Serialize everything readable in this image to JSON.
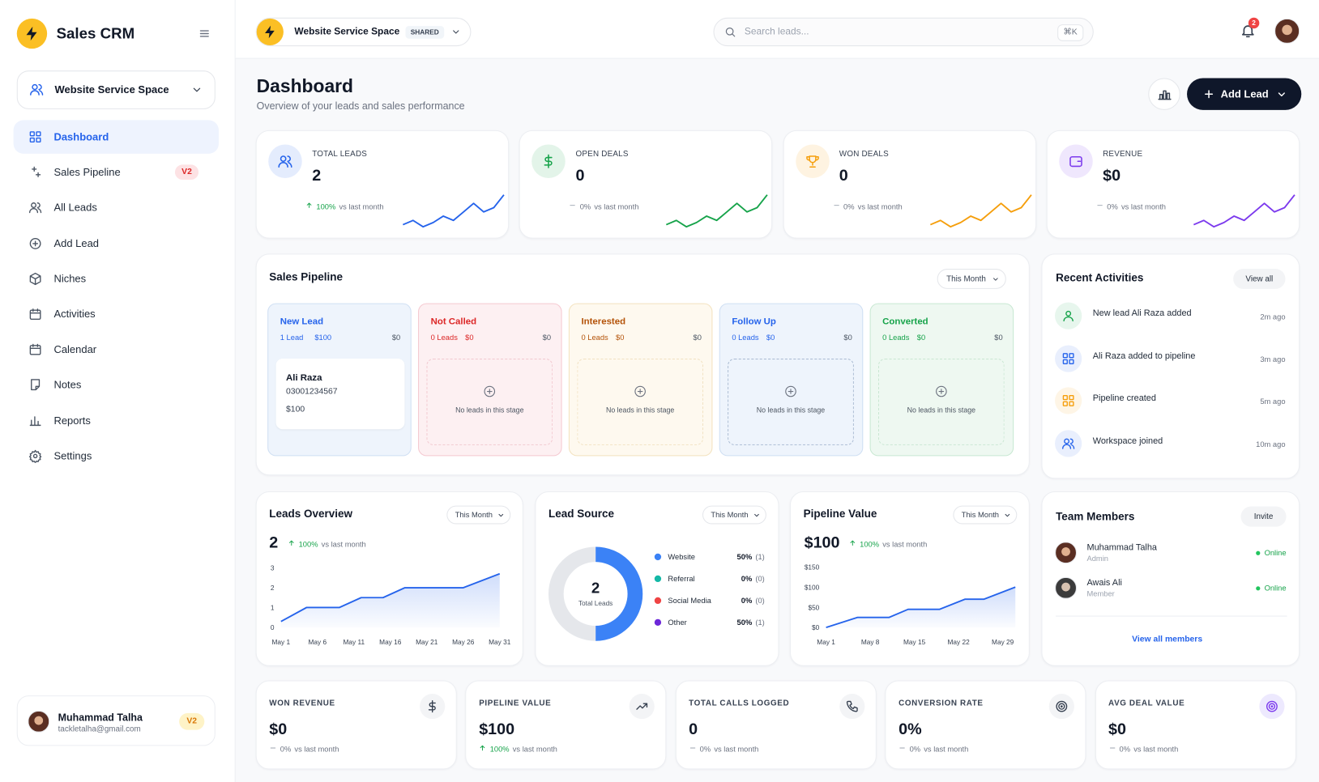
{
  "sidebar": {
    "brand": "Sales CRM",
    "workspace": "Website Service Space",
    "nav": [
      {
        "label": "Dashboard",
        "active": true
      },
      {
        "label": "Sales Pipeline",
        "badge": "V2"
      },
      {
        "label": "All Leads"
      },
      {
        "label": "Add Lead"
      },
      {
        "label": "Niches"
      },
      {
        "label": "Activities"
      },
      {
        "label": "Calendar"
      },
      {
        "label": "Notes"
      },
      {
        "label": "Reports"
      },
      {
        "label": "Settings"
      }
    ],
    "user": {
      "name": "Muhammad Talha",
      "email": "tackletalha@gmail.com",
      "badge": "V2"
    }
  },
  "topbar": {
    "workspace": "Website Service Space",
    "tag": "SHARED",
    "search": "Search leads...",
    "shortcut": "⌘K",
    "notifications": "2"
  },
  "header": {
    "title": "Dashboard",
    "subtitle": "Overview of your leads and sales performance",
    "add_button": "Add Lead"
  },
  "stats": [
    {
      "label": "TOTAL LEADS",
      "value": "2",
      "change": "100%",
      "change_text": "vs last month",
      "direction": "up",
      "color": "#2563eb",
      "trend": [
        2,
        3,
        1.5,
        2.5,
        4,
        3,
        5,
        7,
        5,
        6,
        9
      ]
    },
    {
      "label": "OPEN DEALS",
      "value": "0",
      "change": "0%",
      "change_text": "vs last month",
      "direction": "flat",
      "color": "#16a34a",
      "trend": [
        2,
        3,
        1.5,
        2.5,
        4,
        3,
        5,
        7,
        5,
        6,
        9
      ]
    },
    {
      "label": "WON DEALS",
      "value": "0",
      "change": "0%",
      "change_text": "vs last month",
      "direction": "flat",
      "color": "#f59e0b",
      "trend": [
        2,
        3,
        1.5,
        2.5,
        4,
        3,
        5,
        7,
        5,
        6,
        9
      ]
    },
    {
      "label": "REVENUE",
      "value": "$0",
      "change": "0%",
      "change_text": "vs last month",
      "direction": "flat",
      "color": "#7c3aed",
      "trend": [
        2,
        3,
        1.5,
        2.5,
        4,
        3,
        5,
        7,
        5,
        6,
        9
      ]
    }
  ],
  "pipeline": {
    "title": "Sales Pipeline",
    "filter": "This Month",
    "stages": [
      {
        "name": "New Lead",
        "count": "1 Lead",
        "amount": "$100",
        "total": "$0",
        "color": "#2563eb",
        "bg": "#eef4fc",
        "border": "#cfdff3",
        "leads": [
          {
            "name": "Ali Raza",
            "phone": "03001234567",
            "value": "$100"
          }
        ]
      },
      {
        "name": "Not Called",
        "count": "0 Leads",
        "amount": "$0",
        "total": "$0",
        "color": "#dc2626",
        "bg": "#fdf0f2",
        "border": "#f5c8d0",
        "empty": "No leads in this stage"
      },
      {
        "name": "Interested",
        "count": "0 Leads",
        "amount": "$0",
        "total": "$0",
        "color": "#b45309",
        "bg": "#fef9ef",
        "border": "#f3e2bf",
        "empty": "No leads in this stage"
      },
      {
        "name": "Follow Up",
        "count": "0 Leads",
        "amount": "$0",
        "total": "$0",
        "color": "#2563eb",
        "bg": "#eef4fc",
        "border": "#cfdff3",
        "empty": "No leads in this stage"
      },
      {
        "name": "Converted",
        "count": "0 Leads",
        "amount": "$0",
        "total": "$0",
        "color": "#16a34a",
        "bg": "#eef8f1",
        "border": "#c8e8d2",
        "empty": "No leads in this stage"
      }
    ]
  },
  "activities": {
    "title": "Recent Activities",
    "view_all": "View all",
    "items": [
      {
        "text": "New lead Ali Raza added",
        "time": "2m ago",
        "color": "#16a34a"
      },
      {
        "text": "Ali Raza added to pipeline",
        "time": "3m ago",
        "color": "#2563eb"
      },
      {
        "text": "Pipeline created",
        "time": "5m ago",
        "color": "#f59e0b"
      },
      {
        "text": "Workspace joined",
        "time": "10m ago",
        "color": "#2563eb"
      }
    ]
  },
  "leads_overview": {
    "title": "Leads Overview",
    "filter": "This Month",
    "value": "2",
    "change": "100%",
    "change_text": "vs last month",
    "chart": {
      "type": "area",
      "color": "#2563eb",
      "x": [
        1,
        4.5,
        9,
        12,
        15,
        18,
        22,
        26,
        31
      ],
      "values": [
        0.3,
        1,
        1,
        1.5,
        1.5,
        2,
        2,
        2,
        2.7
      ],
      "xlim": [
        1,
        31
      ],
      "xticks": [
        {
          "value": 1,
          "label": "May 1"
        },
        {
          "value": 6,
          "label": "May 6"
        },
        {
          "value": 11,
          "label": "May 11"
        },
        {
          "value": 16,
          "label": "May 16"
        },
        {
          "value": 21,
          "label": "May 21"
        },
        {
          "value": 26,
          "label": "May 26"
        },
        {
          "value": 31,
          "label": "May 31"
        }
      ],
      "ylim": [
        0,
        3
      ],
      "yticks": [
        0,
        1,
        2,
        3
      ]
    }
  },
  "lead_source": {
    "title": "Lead Source",
    "filter": "This Month",
    "total": "2",
    "total_label": "Total Leads",
    "chart": {
      "type": "donut",
      "series": [
        {
          "name": "Website",
          "color": "#3b82f6",
          "value": 50,
          "value_label": "50%",
          "count": "(1)"
        },
        {
          "name": "Referral",
          "color": "#14b8a6",
          "value": 0,
          "value_label": "0%",
          "count": "(0)"
        },
        {
          "name": "Social Media",
          "color": "#ef4444",
          "value": 0,
          "value_label": "0%",
          "count": "(0)"
        },
        {
          "name": "Other",
          "color": "#e5e7eb",
          "legend_color": "#6d28d9",
          "value": 50,
          "value_label": "50%",
          "count": "(1)"
        }
      ]
    }
  },
  "pipeline_value": {
    "title": "Pipeline Value",
    "filter": "This Month",
    "value": "$100",
    "change": "100%",
    "change_text": "vs last month",
    "chart": {
      "type": "area",
      "color": "#2563eb",
      "x": [
        1,
        4,
        6,
        11,
        14,
        19,
        23,
        26,
        31
      ],
      "values": [
        0,
        15,
        25,
        25,
        45,
        45,
        70,
        70,
        100
      ],
      "xlim": [
        1,
        31
      ],
      "xticks": [
        {
          "value": 1,
          "label": "May 1"
        },
        {
          "value": 8,
          "label": "May 8"
        },
        {
          "value": 15,
          "label": "May 15"
        },
        {
          "value": 22,
          "label": "May 22"
        },
        {
          "value": 29,
          "label": "May 29"
        }
      ],
      "ylim": [
        0,
        150
      ],
      "yticks": [
        {
          "value": 0,
          "label": "$0"
        },
        {
          "value": 50,
          "label": "$50"
        },
        {
          "value": 100,
          "label": "$100"
        },
        {
          "value": 150,
          "label": "$150"
        }
      ]
    }
  },
  "team": {
    "title": "Team Members",
    "invite": "Invite",
    "members": [
      {
        "name": "Muhammad Talha",
        "role": "Admin",
        "status": "Online"
      },
      {
        "name": "Awais Ali",
        "role": "Member",
        "status": "Online"
      }
    ],
    "view_all": "View all members"
  },
  "kpis": [
    {
      "label": "WON REVENUE",
      "value": "$0",
      "change": "0%",
      "change_text": "vs last month",
      "direction": "flat",
      "color": "#374151"
    },
    {
      "label": "PIPELINE VALUE",
      "value": "$100",
      "change": "100%",
      "change_text": "vs last month",
      "direction": "up",
      "color": "#374151"
    },
    {
      "label": "TOTAL CALLS LOGGED",
      "value": "0",
      "change": "0%",
      "change_text": "vs last month",
      "direction": "flat",
      "color": "#374151"
    },
    {
      "label": "CONVERSION RATE",
      "value": "0%",
      "change": "0%",
      "change_text": "vs last month",
      "direction": "flat",
      "color": "#374151"
    },
    {
      "label": "AVG DEAL VALUE",
      "value": "$0",
      "change": "0%",
      "change_text": "vs last month",
      "direction": "flat",
      "color": "#7c3aed"
    }
  ]
}
